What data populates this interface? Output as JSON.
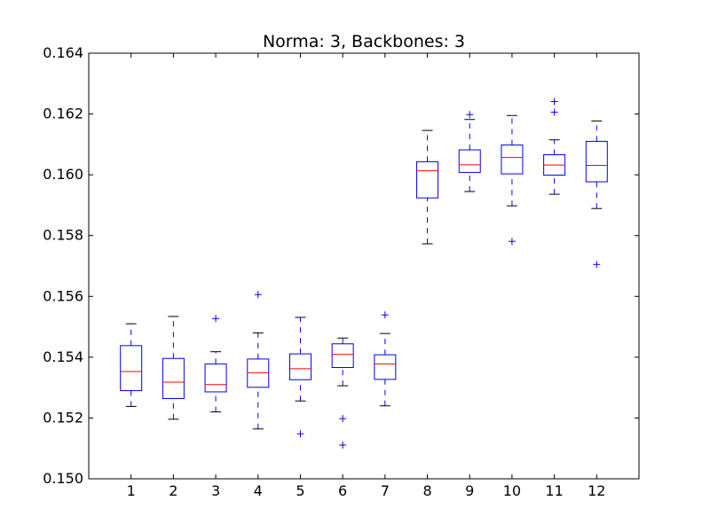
{
  "chart_data": {
    "type": "boxplot",
    "title": "Norma: 3, Backbones: 3",
    "xlabel": "",
    "ylabel": "",
    "ylim": [
      0.15,
      0.164
    ],
    "yticks": [
      "0.150",
      "0.152",
      "0.154",
      "0.156",
      "0.158",
      "0.160",
      "0.162",
      "0.164"
    ],
    "categories": [
      "1",
      "2",
      "3",
      "4",
      "5",
      "6",
      "7",
      "8",
      "9",
      "10",
      "11",
      "12"
    ],
    "boxes": [
      {
        "category": "1",
        "whisker_low": 0.15238,
        "q1": 0.1529,
        "median": 0.15353,
        "q3": 0.15438,
        "whisker_high": 0.1551,
        "outliers": []
      },
      {
        "category": "2",
        "whisker_low": 0.15196,
        "q1": 0.15264,
        "median": 0.15318,
        "q3": 0.15396,
        "whisker_high": 0.15534,
        "outliers": []
      },
      {
        "category": "3",
        "whisker_low": 0.1522,
        "q1": 0.15286,
        "median": 0.1531,
        "q3": 0.15378,
        "whisker_high": 0.15418,
        "outliers": [
          0.15527
        ]
      },
      {
        "category": "4",
        "whisker_low": 0.15164,
        "q1": 0.15301,
        "median": 0.15349,
        "q3": 0.15394,
        "whisker_high": 0.1548,
        "outliers": [
          0.15606
        ]
      },
      {
        "category": "5",
        "whisker_low": 0.15256,
        "q1": 0.15326,
        "median": 0.15362,
        "q3": 0.15411,
        "whisker_high": 0.15531,
        "outliers": [
          0.15148
        ]
      },
      {
        "category": "6",
        "whisker_low": 0.15306,
        "q1": 0.15366,
        "median": 0.15409,
        "q3": 0.15444,
        "whisker_high": 0.15463,
        "outliers": [
          0.15198,
          0.15111
        ]
      },
      {
        "category": "7",
        "whisker_low": 0.1524,
        "q1": 0.15327,
        "median": 0.15378,
        "q3": 0.15408,
        "whisker_high": 0.15478,
        "outliers": [
          0.15539
        ]
      },
      {
        "category": "8",
        "whisker_low": 0.15773,
        "q1": 0.15924,
        "median": 0.16013,
        "q3": 0.16043,
        "whisker_high": 0.16146,
        "outliers": []
      },
      {
        "category": "9",
        "whisker_low": 0.15945,
        "q1": 0.16008,
        "median": 0.16033,
        "q3": 0.16082,
        "whisker_high": 0.16182,
        "outliers": [
          0.16198
        ]
      },
      {
        "category": "10",
        "whisker_low": 0.15898,
        "q1": 0.16003,
        "median": 0.16057,
        "q3": 0.16098,
        "whisker_high": 0.16195,
        "outliers": [
          0.15781
        ]
      },
      {
        "category": "11",
        "whisker_low": 0.15936,
        "q1": 0.15999,
        "median": 0.16032,
        "q3": 0.16066,
        "whisker_high": 0.16115,
        "outliers": [
          0.16241,
          0.16206
        ]
      },
      {
        "category": "12",
        "whisker_low": 0.15889,
        "q1": 0.15977,
        "median": 0.16031,
        "q3": 0.1611,
        "whisker_high": 0.16177,
        "outliers": [
          0.15705
        ]
      }
    ],
    "grid": false,
    "colors": {
      "box": "#0000ff",
      "median": "#ff0000",
      "whisker_cap": "#000000",
      "outlier": "#0000ff",
      "axes": "#000000"
    }
  }
}
